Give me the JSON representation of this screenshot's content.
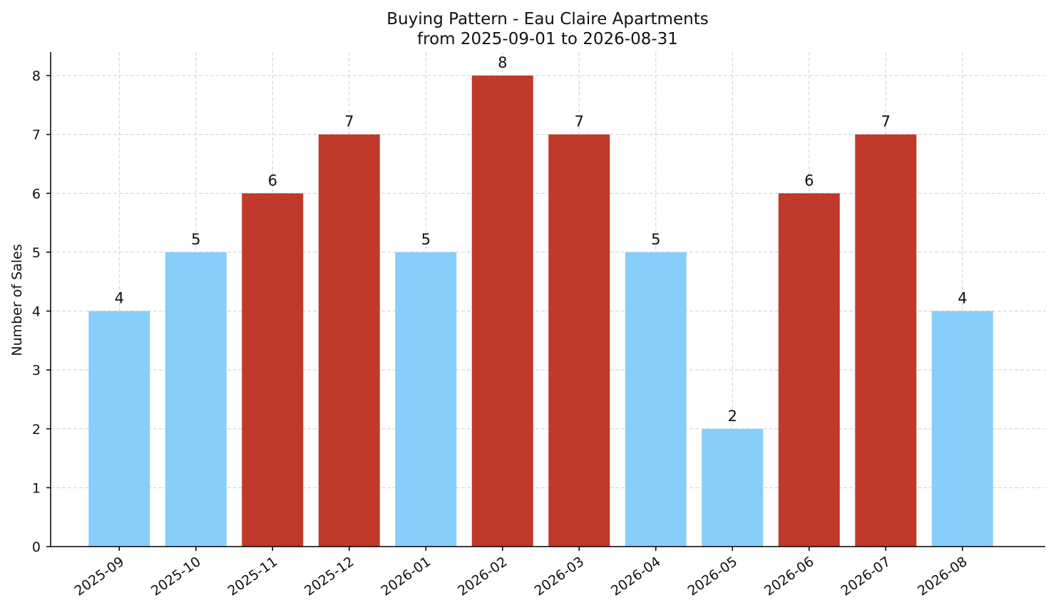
{
  "chart_data": {
    "type": "bar",
    "title": "Buying Pattern - Eau Claire Apartments",
    "subtitle": "from 2025-09-01 to 2026-08-31",
    "xlabel": "",
    "ylabel": "Number of Sales",
    "categories": [
      "2025-09",
      "2025-10",
      "2025-11",
      "2025-12",
      "2026-01",
      "2026-02",
      "2026-03",
      "2026-04",
      "2026-05",
      "2026-06",
      "2026-07",
      "2026-08"
    ],
    "values": [
      4,
      5,
      6,
      7,
      5,
      8,
      7,
      5,
      2,
      6,
      7,
      4
    ],
    "bar_colors": [
      "#87CEFA",
      "#87CEFA",
      "#C0392B",
      "#C0392B",
      "#87CEFA",
      "#C0392B",
      "#C0392B",
      "#87CEFA",
      "#87CEFA",
      "#C0392B",
      "#C0392B",
      "#87CEFA"
    ],
    "ylim": [
      0,
      8.4
    ],
    "yticks": [
      0,
      1,
      2,
      3,
      4,
      5,
      6,
      7,
      8
    ],
    "grid": true,
    "legend": "none"
  }
}
